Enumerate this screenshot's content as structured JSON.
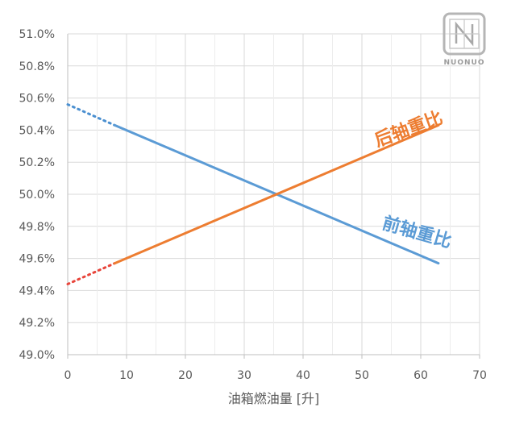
{
  "chart_data": {
    "type": "line",
    "xlabel": "油箱燃油量 [升]",
    "ylabel": "",
    "xlim": [
      0,
      70
    ],
    "ylim": [
      49.0,
      51.0
    ],
    "x_ticks": [
      0,
      10,
      20,
      30,
      40,
      50,
      60,
      70
    ],
    "y_ticks": [
      49.0,
      49.2,
      49.4,
      49.6,
      49.8,
      50.0,
      50.2,
      50.4,
      50.6,
      50.8,
      51.0
    ],
    "y_tick_labels": [
      "49.0%",
      "49.2%",
      "49.4%",
      "49.6%",
      "49.8%",
      "50.0%",
      "50.2%",
      "50.4%",
      "50.6%",
      "50.8%",
      "51.0%"
    ],
    "grid": true,
    "series": [
      {
        "name": "前轴重比",
        "color": "#5b9bd5",
        "dotted_color": "#4a8fd0",
        "solid": {
          "x": [
            8,
            63
          ],
          "y": [
            50.43,
            49.57
          ]
        },
        "dotted": {
          "x": [
            0,
            8
          ],
          "y": [
            50.56,
            50.43
          ]
        }
      },
      {
        "name": "后轴重比",
        "color": "#ed7d31",
        "dotted_color": "#e8443a",
        "solid": {
          "x": [
            8,
            63
          ],
          "y": [
            49.57,
            50.43
          ]
        },
        "dotted": {
          "x": [
            0,
            8
          ],
          "y": [
            49.44,
            49.57
          ]
        }
      }
    ]
  },
  "watermark": {
    "text": "NUONUO"
  }
}
